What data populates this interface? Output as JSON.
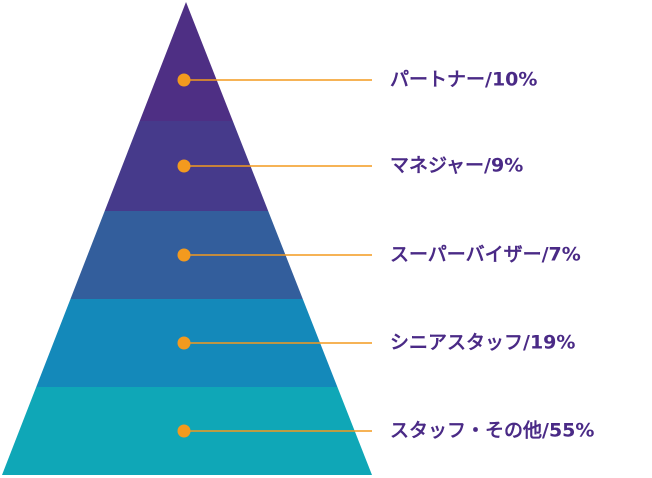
{
  "diagram": {
    "type": "pyramid",
    "connector_color": "#F39A1E",
    "label_color": "#4A2A86",
    "tiers": [
      {
        "label": "パートナー/10%",
        "color": "#4E2F84"
      },
      {
        "label": "マネジャー/9%",
        "color": "#463A8B"
      },
      {
        "label": "スーパーバイザー/7%",
        "color": "#335E9C"
      },
      {
        "label": "シニアスタッフ/19%",
        "color": "#1489BA"
      },
      {
        "label": "スタッフ・その他/55%",
        "color": "#0FA7B7"
      }
    ]
  }
}
